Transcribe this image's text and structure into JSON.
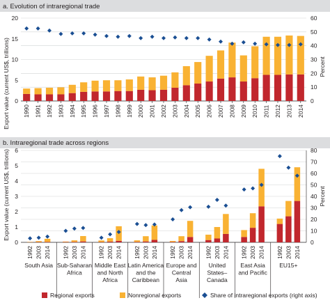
{
  "chart_data": [
    {
      "type": "bar",
      "title": "a. Evolution of intraregional trade",
      "ylabel": "Export value (current US$, trillions)",
      "y2label": "Percent",
      "stacked": true,
      "ylim": [
        0,
        20
      ],
      "yticks": [
        0,
        5,
        10,
        15,
        20
      ],
      "y2lim": [
        0,
        60
      ],
      "y2ticks": [
        0,
        10,
        20,
        30,
        40,
        50,
        60
      ],
      "grid": true,
      "categories": [
        "1990",
        "1991",
        "1992",
        "1993",
        "1994",
        "1995",
        "1996",
        "1997",
        "1998",
        "1999",
        "2000",
        "2001",
        "2002",
        "2003",
        "2004",
        "2005",
        "2006",
        "2007",
        "2008",
        "2009",
        "2010",
        "2011",
        "2012",
        "2013",
        "2014"
      ],
      "series": [
        {
          "name": "Regional exports",
          "color": "#c1272d",
          "values": [
            1.7,
            1.6,
            1.6,
            1.6,
            1.9,
            2.2,
            2.3,
            2.3,
            2.4,
            2.4,
            2.7,
            2.6,
            2.7,
            3.2,
            3.8,
            4.2,
            4.7,
            5.4,
            5.7,
            4.7,
            5.5,
            6.3,
            6.3,
            6.4,
            6.4
          ]
        },
        {
          "name": "Nonregional exports",
          "color": "#f9b233",
          "values": [
            1.3,
            1.5,
            1.6,
            1.7,
            2.0,
            2.3,
            2.6,
            2.7,
            2.6,
            2.8,
            3.2,
            3.1,
            3.4,
            3.7,
            4.6,
            5.2,
            6.2,
            6.8,
            8.4,
            6.3,
            7.7,
            9.2,
            9.2,
            9.4,
            9.3
          ]
        },
        {
          "name": "Share of intraregional exports (right axis)",
          "axis": "right",
          "color": "#1b4f93",
          "marker": "diamond",
          "values": [
            52.5,
            52.5,
            51.0,
            48.5,
            49.0,
            49.0,
            48.0,
            47.0,
            46.5,
            47.0,
            45.5,
            46.5,
            45.5,
            46.0,
            45.5,
            45.5,
            44.5,
            43.0,
            41.5,
            42.5,
            41.5,
            41.0,
            40.5,
            40.5,
            41.0
          ]
        }
      ]
    },
    {
      "type": "bar",
      "title": "b. Intraregional trade across regions",
      "ylabel": "Export value (current US$, trillions)",
      "y2label": "Percent",
      "stacked": true,
      "ylim": [
        0,
        6
      ],
      "yticks": [
        0,
        1,
        2,
        3,
        4,
        5,
        6
      ],
      "y2lim": [
        0,
        80
      ],
      "y2ticks": [
        0,
        10,
        20,
        30,
        40,
        50,
        60,
        70,
        80
      ],
      "grid": true,
      "years": [
        "1992",
        "2003",
        "2014"
      ],
      "groups": [
        {
          "label": [
            "South Asia"
          ],
          "regional": [
            0.01,
            0.02,
            0.03
          ],
          "nonregional": [
            0.02,
            0.06,
            0.2
          ],
          "share": [
            3.5,
            4,
            5
          ]
        },
        {
          "label": [
            "Sub-Saharan",
            "Africa"
          ],
          "regional": [
            0.02,
            0.03,
            0.06
          ],
          "nonregional": [
            0.03,
            0.1,
            0.35
          ],
          "share": [
            10,
            12,
            12.5
          ]
        },
        {
          "label": [
            "Middle East",
            "and North",
            "Africa"
          ],
          "regional": [
            0.02,
            0.05,
            0.1
          ],
          "nonregional": [
            0.1,
            0.22,
            0.95
          ],
          "share": [
            4,
            7,
            9
          ]
        },
        {
          "label": [
            "Latin America",
            "and the",
            "Caribbean"
          ],
          "regional": [
            0.03,
            0.06,
            0.16
          ],
          "nonregional": [
            0.1,
            0.34,
            0.94
          ],
          "share": [
            16,
            15,
            15.5
          ]
        },
        {
          "label": [
            "Europe and",
            "Central",
            "Asia"
          ],
          "regional": [
            0.03,
            0.08,
            0.35
          ],
          "nonregional": [
            0.06,
            0.32,
            1.05
          ],
          "share": [
            20,
            28,
            30.5
          ]
        },
        {
          "label": [
            "United",
            "States–",
            "Canada"
          ],
          "regional": [
            0.15,
            0.25,
            0.55
          ],
          "nonregional": [
            0.35,
            0.75,
            1.3
          ],
          "share": [
            31,
            37,
            32
          ]
        },
        {
          "label": [
            "East Asia",
            "and Pacific"
          ],
          "regional": [
            0.35,
            0.95,
            2.35
          ],
          "nonregional": [
            0.45,
            0.95,
            2.45
          ],
          "share": [
            46,
            47,
            50
          ]
        },
        {
          "label": [
            "EU15+"
          ],
          "regional": [
            1.2,
            1.7,
            2.7
          ],
          "nonregional": [
            0.35,
            1.0,
            2.2
          ],
          "share": [
            75,
            65,
            58
          ]
        }
      ],
      "legend": {
        "position": "bottom",
        "items": [
          {
            "label": "Regional exports",
            "color": "#c1272d",
            "marker": "square"
          },
          {
            "label": "Nonregional exports",
            "color": "#f9b233",
            "marker": "square"
          },
          {
            "label": "Share of intraregional exports (right axis)",
            "color": "#1b4f93",
            "marker": "diamond"
          }
        ]
      }
    }
  ]
}
